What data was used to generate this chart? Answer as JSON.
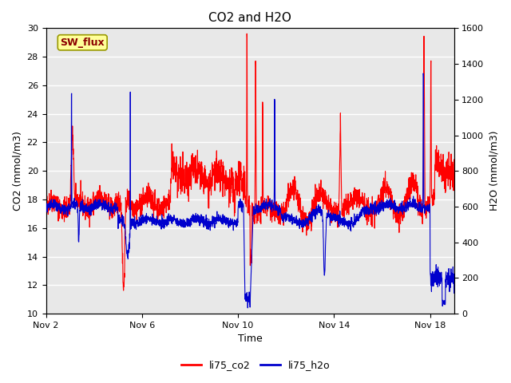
{
  "title": "CO2 and H2O",
  "xlabel": "Time",
  "ylabel_left": "CO2 (mmol/m3)",
  "ylabel_right": "H2O (mmol/m3)",
  "ylim_left": [
    10,
    30
  ],
  "ylim_right": [
    0,
    1600
  ],
  "yticks_left": [
    10,
    12,
    14,
    16,
    18,
    20,
    22,
    24,
    26,
    28,
    30
  ],
  "yticks_right": [
    0,
    200,
    400,
    600,
    800,
    1000,
    1200,
    1400,
    1600
  ],
  "xtick_labels": [
    "Nov 2",
    "Nov 6",
    "Nov 10",
    "Nov 14",
    "Nov 18"
  ],
  "xtick_positions": [
    0,
    4,
    8,
    12,
    16
  ],
  "annotation_text": "SW_flux",
  "annotation_color": "#8B0000",
  "annotation_bg": "#FFFF99",
  "legend_co2_label": "li75_co2",
  "legend_h2o_label": "li75_h2o",
  "co2_color": "#FF0000",
  "h2o_color": "#0000CD",
  "plot_bg": "#E8E8E8",
  "grid_color": "#FFFFFF",
  "line_width": 0.8,
  "seed": 42
}
